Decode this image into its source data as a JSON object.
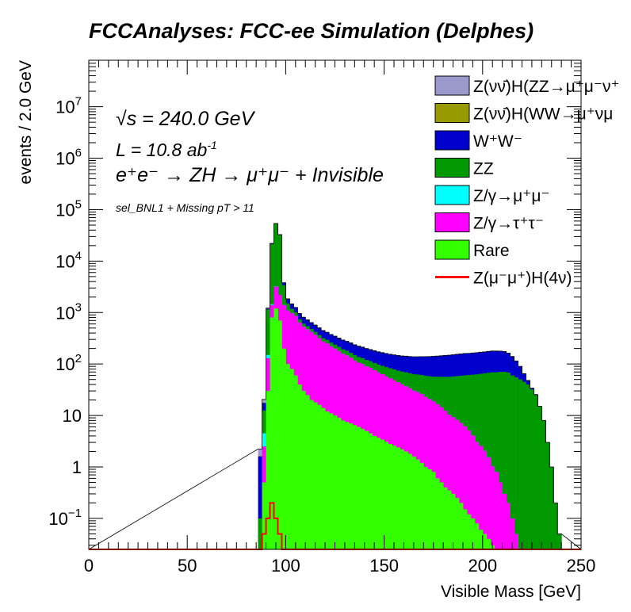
{
  "chart_data": {
    "type": "bar",
    "stacked": true,
    "title": "FCCAnalyses: FCC-ee Simulation (Delphes)",
    "xlabel": "Visible Mass [GeV]",
    "ylabel": "events / 2.0 GeV",
    "xlim": [
      0,
      250
    ],
    "ylim": [
      0.025,
      80000000.0
    ],
    "yscale": "log",
    "bin_width": 2,
    "x_ticks": [
      "0",
      "50",
      "100",
      "150",
      "200",
      "250"
    ],
    "y_ticks": [
      {
        "value": 0.1,
        "base": "10",
        "exp": "−1"
      },
      {
        "value": 1,
        "base": "1",
        "exp": ""
      },
      {
        "value": 10,
        "base": "10",
        "exp": ""
      },
      {
        "value": 100,
        "base": "10",
        "exp": "2"
      },
      {
        "value": 1000,
        "base": "10",
        "exp": "3"
      },
      {
        "value": 10000,
        "base": "10",
        "exp": "4"
      },
      {
        "value": 100000,
        "base": "10",
        "exp": "5"
      },
      {
        "value": 1000000,
        "base": "10",
        "exp": "6"
      },
      {
        "value": 10000000,
        "base": "10",
        "exp": "7"
      }
    ],
    "annotations": {
      "sqrt_s": "√s = 240.0 GeV",
      "lumi_main": "L = 10.8 ab",
      "lumi_exp": "-1",
      "process": "e⁺e⁻ → ZH → μ⁺μ⁻ + Invisible",
      "selection": "sel_BNL1 + Missing pT > 11"
    },
    "legend_position": "top-right",
    "series": [
      {
        "name": "Z(νν̄)H(ZZ→μ⁺μ⁻ν⁺",
        "color": "#9999cc",
        "draw": "fill",
        "points": [
          [
            86,
            0.6
          ],
          [
            88,
            3
          ],
          [
            90,
            30
          ],
          [
            92,
            300
          ],
          [
            94,
            180
          ],
          [
            96,
            5
          ],
          [
            98,
            0.5
          ],
          [
            100,
            0.3
          ],
          [
            102,
            0.15
          ],
          [
            104,
            0.1
          ],
          [
            106,
            0.05
          ],
          [
            108,
            0.03
          ]
        ]
      },
      {
        "name": "Z(νν̄)H(WW→μ⁺νμ",
        "color": "#999900",
        "draw": "fill",
        "points": [
          [
            86,
            0.03
          ],
          [
            88,
            0.1
          ],
          [
            90,
            0.3
          ],
          [
            92,
            2
          ],
          [
            94,
            0.4
          ],
          [
            96,
            0.2
          ],
          [
            98,
            0.1
          ],
          [
            100,
            0.05
          ]
        ]
      },
      {
        "name": "W⁺W⁻",
        "color": "#0000cc",
        "draw": "fill",
        "points": [
          [
            86,
            1.5
          ],
          [
            88,
            5
          ],
          [
            90,
            40
          ],
          [
            92,
            300
          ],
          [
            94,
            450
          ],
          [
            96,
            500
          ],
          [
            98,
            400
          ],
          [
            100,
            350
          ],
          [
            102,
            300
          ],
          [
            104,
            250
          ],
          [
            106,
            220
          ],
          [
            108,
            200
          ],
          [
            110,
            180
          ],
          [
            112,
            160
          ],
          [
            114,
            150
          ],
          [
            116,
            140
          ],
          [
            118,
            130
          ],
          [
            120,
            120
          ],
          [
            122,
            115
          ],
          [
            124,
            110
          ],
          [
            126,
            105
          ],
          [
            128,
            100
          ],
          [
            130,
            95
          ],
          [
            132,
            92
          ],
          [
            134,
            88
          ],
          [
            136,
            85
          ],
          [
            138,
            82
          ],
          [
            140,
            80
          ],
          [
            142,
            78
          ],
          [
            144,
            76
          ],
          [
            146,
            75
          ],
          [
            148,
            74
          ],
          [
            150,
            73
          ],
          [
            152,
            72
          ],
          [
            154,
            72
          ],
          [
            156,
            72
          ],
          [
            158,
            72
          ],
          [
            160,
            73
          ],
          [
            162,
            74
          ],
          [
            164,
            75
          ],
          [
            166,
            76
          ],
          [
            168,
            78
          ],
          [
            170,
            80
          ],
          [
            172,
            82
          ],
          [
            174,
            84
          ],
          [
            176,
            86
          ],
          [
            178,
            88
          ],
          [
            180,
            90
          ],
          [
            182,
            92
          ],
          [
            184,
            94
          ],
          [
            186,
            96
          ],
          [
            188,
            98
          ],
          [
            190,
            100
          ],
          [
            192,
            100
          ],
          [
            194,
            102
          ],
          [
            196,
            103
          ],
          [
            198,
            105
          ],
          [
            200,
            106
          ],
          [
            202,
            108
          ],
          [
            204,
            110
          ],
          [
            206,
            110
          ],
          [
            208,
            108
          ],
          [
            210,
            105
          ],
          [
            212,
            95
          ],
          [
            214,
            80
          ],
          [
            216,
            60
          ],
          [
            218,
            40
          ],
          [
            220,
            20
          ],
          [
            222,
            8
          ],
          [
            224,
            2
          ],
          [
            226,
            0.5
          ],
          [
            228,
            0.1
          ],
          [
            230,
            0.03
          ]
        ]
      },
      {
        "name": "ZZ",
        "color": "#009900",
        "draw": "fill",
        "points": [
          [
            86,
            0.1
          ],
          [
            88,
            8
          ],
          [
            90,
            1000
          ],
          [
            92,
            20000
          ],
          [
            94,
            50000
          ],
          [
            96,
            30000
          ],
          [
            98,
            2000
          ],
          [
            100,
            400
          ],
          [
            102,
            200
          ],
          [
            104,
            150
          ],
          [
            106,
            100
          ],
          [
            108,
            80
          ],
          [
            110,
            70
          ],
          [
            112,
            60
          ],
          [
            114,
            55
          ],
          [
            116,
            50
          ],
          [
            118,
            45
          ],
          [
            120,
            42
          ],
          [
            122,
            40
          ],
          [
            124,
            38
          ],
          [
            126,
            36
          ],
          [
            128,
            35
          ],
          [
            130,
            34
          ],
          [
            132,
            33
          ],
          [
            134,
            32
          ],
          [
            136,
            31
          ],
          [
            138,
            30
          ],
          [
            140,
            30
          ],
          [
            142,
            29
          ],
          [
            144,
            29
          ],
          [
            146,
            29
          ],
          [
            148,
            29
          ],
          [
            150,
            29
          ],
          [
            152,
            30
          ],
          [
            154,
            30
          ],
          [
            156,
            30
          ],
          [
            158,
            31
          ],
          [
            160,
            32
          ],
          [
            162,
            32
          ],
          [
            164,
            33
          ],
          [
            166,
            34
          ],
          [
            168,
            35
          ],
          [
            170,
            36
          ],
          [
            172,
            37
          ],
          [
            174,
            38
          ],
          [
            176,
            40
          ],
          [
            178,
            42
          ],
          [
            180,
            44
          ],
          [
            182,
            46
          ],
          [
            184,
            48
          ],
          [
            186,
            50
          ],
          [
            188,
            52
          ],
          [
            190,
            54
          ],
          [
            192,
            56
          ],
          [
            194,
            58
          ],
          [
            196,
            60
          ],
          [
            198,
            62
          ],
          [
            200,
            64
          ],
          [
            202,
            66
          ],
          [
            204,
            68
          ],
          [
            206,
            68
          ],
          [
            208,
            70
          ],
          [
            210,
            70
          ],
          [
            212,
            68
          ],
          [
            214,
            60
          ],
          [
            216,
            55
          ],
          [
            218,
            50
          ],
          [
            220,
            45
          ],
          [
            222,
            40
          ],
          [
            224,
            32
          ],
          [
            226,
            25
          ],
          [
            228,
            15
          ],
          [
            230,
            8
          ],
          [
            232,
            3
          ],
          [
            234,
            1
          ],
          [
            236,
            0.2
          ],
          [
            238,
            0.05
          ]
        ]
      },
      {
        "name": "Z/γ→μ⁺μ⁻",
        "color": "#00ffff",
        "draw": "fill",
        "points": [
          [
            88,
            2
          ],
          [
            90,
            20
          ],
          [
            92,
            50
          ],
          [
            94,
            40
          ],
          [
            96,
            5
          ],
          [
            98,
            0.3
          ]
        ]
      },
      {
        "name": "Z/γ→τ⁺τ⁻",
        "color": "#ff00ff",
        "draw": "fill",
        "points": [
          [
            88,
            2
          ],
          [
            90,
            100
          ],
          [
            92,
            600
          ],
          [
            94,
            2000
          ],
          [
            96,
            1500
          ],
          [
            98,
            1200
          ],
          [
            100,
            1000
          ],
          [
            102,
            900
          ],
          [
            104,
            800
          ],
          [
            106,
            600
          ],
          [
            108,
            500
          ],
          [
            110,
            450
          ],
          [
            112,
            400
          ],
          [
            114,
            350
          ],
          [
            116,
            300
          ],
          [
            118,
            260
          ],
          [
            120,
            240
          ],
          [
            122,
            210
          ],
          [
            124,
            190
          ],
          [
            126,
            170
          ],
          [
            128,
            150
          ],
          [
            130,
            140
          ],
          [
            132,
            125
          ],
          [
            134,
            110
          ],
          [
            136,
            100
          ],
          [
            138,
            95
          ],
          [
            140,
            85
          ],
          [
            142,
            80
          ],
          [
            144,
            72
          ],
          [
            146,
            65
          ],
          [
            148,
            60
          ],
          [
            150,
            55
          ],
          [
            152,
            50
          ],
          [
            154,
            46
          ],
          [
            156,
            42
          ],
          [
            158,
            38
          ],
          [
            160,
            35
          ],
          [
            162,
            32
          ],
          [
            164,
            29
          ],
          [
            166,
            27
          ],
          [
            168,
            25
          ],
          [
            170,
            22
          ],
          [
            172,
            20
          ],
          [
            174,
            18
          ],
          [
            176,
            16
          ],
          [
            178,
            14
          ],
          [
            180,
            12
          ],
          [
            182,
            10
          ],
          [
            184,
            9
          ],
          [
            186,
            8
          ],
          [
            188,
            7
          ],
          [
            190,
            6
          ],
          [
            192,
            5
          ],
          [
            194,
            4
          ],
          [
            196,
            3
          ],
          [
            198,
            2.5
          ],
          [
            200,
            2
          ],
          [
            202,
            1.5
          ],
          [
            204,
            1
          ],
          [
            206,
            0.8
          ],
          [
            208,
            0.5
          ],
          [
            210,
            0.3
          ],
          [
            212,
            0.2
          ],
          [
            214,
            0.1
          ],
          [
            216,
            0.05
          ]
        ]
      },
      {
        "name": "Rare",
        "color": "#33ff00",
        "draw": "fill",
        "points": [
          [
            88,
            0.5
          ],
          [
            90,
            30
          ],
          [
            92,
            800
          ],
          [
            94,
            1200
          ],
          [
            96,
            700
          ],
          [
            98,
            200
          ],
          [
            100,
            100
          ],
          [
            102,
            80
          ],
          [
            104,
            60
          ],
          [
            106,
            40
          ],
          [
            108,
            30
          ],
          [
            110,
            25
          ],
          [
            112,
            20
          ],
          [
            114,
            18
          ],
          [
            116,
            16
          ],
          [
            118,
            14
          ],
          [
            120,
            12
          ],
          [
            122,
            11
          ],
          [
            124,
            10
          ],
          [
            126,
            9
          ],
          [
            128,
            8
          ],
          [
            130,
            7.5
          ],
          [
            132,
            7
          ],
          [
            134,
            6.5
          ],
          [
            136,
            6
          ],
          [
            138,
            5.5
          ],
          [
            140,
            5
          ],
          [
            142,
            4.5
          ],
          [
            144,
            4
          ],
          [
            146,
            3.7
          ],
          [
            148,
            3.4
          ],
          [
            150,
            3.1
          ],
          [
            152,
            2.8
          ],
          [
            154,
            2.6
          ],
          [
            156,
            2.4
          ],
          [
            158,
            2.2
          ],
          [
            160,
            2
          ],
          [
            162,
            1.8
          ],
          [
            164,
            1.6
          ],
          [
            166,
            1.4
          ],
          [
            168,
            1.2
          ],
          [
            170,
            1
          ],
          [
            172,
            0.9
          ],
          [
            174,
            0.8
          ],
          [
            176,
            0.6
          ],
          [
            178,
            0.5
          ],
          [
            180,
            0.4
          ],
          [
            182,
            0.35
          ],
          [
            184,
            0.3
          ],
          [
            186,
            0.25
          ],
          [
            188,
            0.2
          ],
          [
            190,
            0.15
          ],
          [
            192,
            0.12
          ],
          [
            194,
            0.1
          ],
          [
            196,
            0.08
          ],
          [
            198,
            0.06
          ],
          [
            200,
            0.05
          ],
          [
            202,
            0.04
          ],
          [
            204,
            0.03
          ]
        ]
      },
      {
        "name": "Z(μ⁻μ⁺)H(4ν)",
        "color": "#ff0000",
        "draw": "line",
        "points": [
          [
            86,
            0.02
          ],
          [
            88,
            0.05
          ],
          [
            90,
            0.1
          ],
          [
            92,
            0.2
          ],
          [
            94,
            0.1
          ],
          [
            96,
            0.05
          ]
        ]
      }
    ]
  }
}
